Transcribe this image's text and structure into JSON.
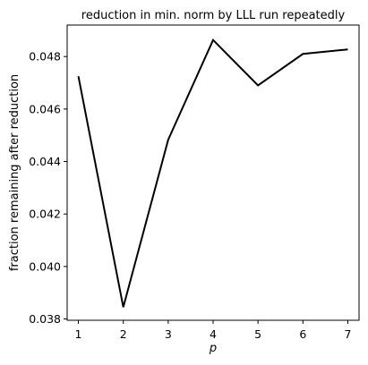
{
  "chart_data": {
    "type": "line",
    "title": "reduction in min. norm by LLL run repeatedly",
    "xlabel": "p",
    "ylabel": "fraction remaining after reduction",
    "x": [
      1,
      2,
      3,
      4,
      5,
      6,
      7
    ],
    "xticks": [
      "1",
      "2",
      "3",
      "4",
      "5",
      "6",
      "7"
    ],
    "yticks": [
      "0.038",
      "0.040",
      "0.042",
      "0.044",
      "0.046",
      "0.048"
    ],
    "ylim": [
      0.03795,
      0.0492
    ],
    "grid": false,
    "series": [
      {
        "values": [
          0.04725,
          0.03845,
          0.04483,
          0.04863,
          0.0469,
          0.0481,
          0.04827
        ],
        "color": "#000000"
      }
    ]
  }
}
